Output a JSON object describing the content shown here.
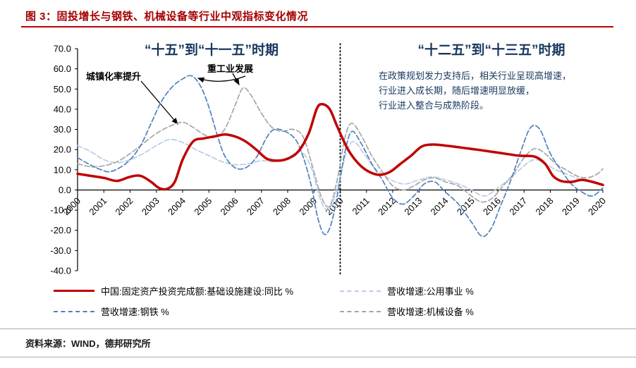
{
  "title": "图 3：固投增长与钢铁、机械设备等行业中观指标变化情况",
  "annotations": {
    "period_left": "“十五”到“十一五”时期",
    "period_right": "“十二五”到“十三五”时期",
    "urbanization": "城镇化率提升",
    "heavy_industry": "重工业发展",
    "policy_note_lines": [
      "在政策规划发力支持后，相关行业呈现高增速，",
      "行业进入成长期，随后增速明显放缓，",
      "行业进入整合与成熟阶段。"
    ]
  },
  "footer": {
    "source": "资料来源：WIND，德邦研究所"
  },
  "colors": {
    "title": "#A40000",
    "title_rule": "#C00000",
    "period_text": "#17375E",
    "axis": "#000000",
    "divider": "#000000",
    "footer_rule": "#ABABAB"
  },
  "chart_data": {
    "type": "line",
    "x_range": [
      2000,
      2020
    ],
    "ylim": [
      -40,
      70
    ],
    "y_ticks": [
      70,
      60,
      50,
      40,
      30,
      20,
      10,
      0,
      -10,
      -20,
      -30,
      -40
    ],
    "x_ticks": [
      2000,
      2001,
      2002,
      2003,
      2004,
      2005,
      2006,
      2007,
      2008,
      2009,
      2010,
      2011,
      2012,
      2013,
      2014,
      2015,
      2016,
      2017,
      2018,
      2019,
      2020
    ],
    "divider_x": 2010,
    "grid": false,
    "legend_position": "bottom",
    "series": [
      {
        "key": "infrastructure",
        "name": "中国:固定资产投资完成额:基础设施建设:同比 %",
        "color": "#C00000",
        "style": "solid",
        "width": 3.5,
        "points": [
          [
            2000,
            8
          ],
          [
            2000.5,
            7
          ],
          [
            2001,
            6
          ],
          [
            2001.5,
            4.5
          ],
          [
            2002,
            6.5
          ],
          [
            2002.4,
            7
          ],
          [
            2002.8,
            4
          ],
          [
            2003.1,
            1
          ],
          [
            2003.4,
            0.5
          ],
          [
            2003.7,
            4
          ],
          [
            2004,
            15
          ],
          [
            2004.4,
            24
          ],
          [
            2004.8,
            25.5
          ],
          [
            2005.2,
            26.5
          ],
          [
            2005.6,
            27.5
          ],
          [
            2006,
            26.5
          ],
          [
            2006.4,
            24
          ],
          [
            2006.8,
            20
          ],
          [
            2007.2,
            15.5
          ],
          [
            2007.6,
            14.5
          ],
          [
            2008,
            15.5
          ],
          [
            2008.4,
            19
          ],
          [
            2008.8,
            28
          ],
          [
            2009.1,
            40
          ],
          [
            2009.3,
            42.5
          ],
          [
            2009.6,
            40
          ],
          [
            2009.9,
            31
          ],
          [
            2010.3,
            20
          ],
          [
            2010.7,
            13
          ],
          [
            2011.1,
            9
          ],
          [
            2011.5,
            7.5
          ],
          [
            2011.9,
            9
          ],
          [
            2012.3,
            13
          ],
          [
            2012.7,
            17
          ],
          [
            2013.1,
            21.5
          ],
          [
            2013.5,
            22.5
          ],
          [
            2014,
            22
          ],
          [
            2014.6,
            21
          ],
          [
            2015.2,
            20
          ],
          [
            2016,
            18.5
          ],
          [
            2016.8,
            17
          ],
          [
            2017.4,
            16.5
          ],
          [
            2017.8,
            13
          ],
          [
            2018.1,
            7
          ],
          [
            2018.4,
            4.5
          ],
          [
            2018.8,
            4
          ],
          [
            2019.2,
            5
          ],
          [
            2019.6,
            4
          ],
          [
            2020,
            2.5
          ]
        ]
      },
      {
        "key": "utilities",
        "name": "营收增速:公用事业 %",
        "color": "#B9CDE5",
        "style": "dashed",
        "width": 1.7,
        "points": [
          [
            2000,
            22
          ],
          [
            2000.5,
            19
          ],
          [
            2001,
            15
          ],
          [
            2001.5,
            13.5
          ],
          [
            2002,
            15
          ],
          [
            2002.5,
            18
          ],
          [
            2003,
            22
          ],
          [
            2003.5,
            25
          ],
          [
            2004,
            23.5
          ],
          [
            2004.5,
            20
          ],
          [
            2005,
            17
          ],
          [
            2005.5,
            14
          ],
          [
            2006,
            12.5
          ],
          [
            2006.5,
            13
          ],
          [
            2007,
            14.5
          ],
          [
            2007.5,
            14
          ],
          [
            2008,
            16
          ],
          [
            2008.5,
            19
          ],
          [
            2008.9,
            11
          ],
          [
            2009.2,
            -3
          ],
          [
            2009.5,
            -10
          ],
          [
            2009.8,
            -3
          ],
          [
            2010.2,
            17
          ],
          [
            2010.5,
            24
          ],
          [
            2010.9,
            18
          ],
          [
            2011.3,
            11
          ],
          [
            2011.7,
            7
          ],
          [
            2012.1,
            4
          ],
          [
            2012.5,
            3
          ],
          [
            2013,
            5
          ],
          [
            2013.5,
            6.5
          ],
          [
            2014,
            5
          ],
          [
            2014.5,
            3
          ],
          [
            2015,
            0
          ],
          [
            2015.5,
            -3
          ],
          [
            2016,
            1
          ],
          [
            2016.5,
            6
          ],
          [
            2017,
            12
          ],
          [
            2017.4,
            15
          ],
          [
            2017.8,
            13
          ],
          [
            2018.2,
            10
          ],
          [
            2018.6,
            8
          ],
          [
            2019,
            6
          ],
          [
            2019.5,
            4
          ],
          [
            2020,
            3
          ]
        ]
      },
      {
        "key": "steel",
        "name": "营收增速:钢铁 %",
        "color": "#4F81BD",
        "style": "dashed",
        "width": 1.7,
        "points": [
          [
            2000,
            16
          ],
          [
            2000.4,
            13
          ],
          [
            2000.8,
            10.5
          ],
          [
            2001.2,
            9
          ],
          [
            2001.6,
            11
          ],
          [
            2002,
            15
          ],
          [
            2002.4,
            22
          ],
          [
            2002.8,
            33
          ],
          [
            2003.2,
            44
          ],
          [
            2003.6,
            51
          ],
          [
            2004,
            55
          ],
          [
            2004.35,
            56.5
          ],
          [
            2004.7,
            51
          ],
          [
            2005,
            41
          ],
          [
            2005.3,
            28
          ],
          [
            2005.6,
            17
          ],
          [
            2006,
            11
          ],
          [
            2006.4,
            11
          ],
          [
            2006.8,
            16
          ],
          [
            2007.2,
            26
          ],
          [
            2007.5,
            30
          ],
          [
            2007.9,
            29
          ],
          [
            2008.3,
            25
          ],
          [
            2008.6,
            16
          ],
          [
            2008.9,
            2
          ],
          [
            2009.15,
            -14
          ],
          [
            2009.4,
            -22
          ],
          [
            2009.65,
            -17
          ],
          [
            2009.9,
            -2
          ],
          [
            2010.2,
            20
          ],
          [
            2010.45,
            29
          ],
          [
            2010.8,
            23
          ],
          [
            2011.2,
            13
          ],
          [
            2011.6,
            5
          ],
          [
            2012,
            -4
          ],
          [
            2012.4,
            -7
          ],
          [
            2012.8,
            -3
          ],
          [
            2013.2,
            3
          ],
          [
            2013.6,
            4
          ],
          [
            2014,
            -1
          ],
          [
            2014.5,
            -7
          ],
          [
            2015,
            -16
          ],
          [
            2015.4,
            -23
          ],
          [
            2015.75,
            -19
          ],
          [
            2016.1,
            -8
          ],
          [
            2016.5,
            5
          ],
          [
            2016.9,
            20
          ],
          [
            2017.25,
            31
          ],
          [
            2017.6,
            30
          ],
          [
            2018,
            18
          ],
          [
            2018.4,
            10
          ],
          [
            2018.8,
            3
          ],
          [
            2019.2,
            -1
          ],
          [
            2019.6,
            -3
          ],
          [
            2020,
            1
          ]
        ]
      },
      {
        "key": "machinery",
        "name": "营收增速:机械设备 %",
        "color": "#A6A6A6",
        "style": "dashed",
        "width": 1.7,
        "points": [
          [
            2000,
            13
          ],
          [
            2000.5,
            11.5
          ],
          [
            2001,
            12
          ],
          [
            2001.5,
            14
          ],
          [
            2002,
            18
          ],
          [
            2002.5,
            23
          ],
          [
            2003,
            28
          ],
          [
            2003.5,
            31.5
          ],
          [
            2004,
            33.5
          ],
          [
            2004.4,
            31
          ],
          [
            2004.8,
            27.5
          ],
          [
            2005.2,
            26
          ],
          [
            2005.6,
            30
          ],
          [
            2006,
            42
          ],
          [
            2006.3,
            50.5
          ],
          [
            2006.6,
            47
          ],
          [
            2007,
            38
          ],
          [
            2007.4,
            31
          ],
          [
            2007.8,
            29
          ],
          [
            2008.2,
            30
          ],
          [
            2008.6,
            26
          ],
          [
            2009,
            9
          ],
          [
            2009.3,
            -4
          ],
          [
            2009.6,
            -8
          ],
          [
            2009.9,
            6
          ],
          [
            2010.2,
            27
          ],
          [
            2010.45,
            33
          ],
          [
            2010.8,
            27
          ],
          [
            2011.2,
            17
          ],
          [
            2011.6,
            9
          ],
          [
            2012,
            2
          ],
          [
            2012.4,
            0
          ],
          [
            2012.8,
            2
          ],
          [
            2013.2,
            5
          ],
          [
            2013.6,
            6
          ],
          [
            2014,
            4
          ],
          [
            2014.5,
            2
          ],
          [
            2015,
            -3
          ],
          [
            2015.4,
            -6
          ],
          [
            2015.8,
            -4
          ],
          [
            2016.2,
            2
          ],
          [
            2016.6,
            8
          ],
          [
            2017,
            16
          ],
          [
            2017.4,
            20.5
          ],
          [
            2017.8,
            18
          ],
          [
            2018.2,
            13
          ],
          [
            2018.6,
            10
          ],
          [
            2019,
            7
          ],
          [
            2019.4,
            6
          ],
          [
            2019.8,
            8
          ],
          [
            2020,
            10.5
          ]
        ]
      }
    ]
  }
}
